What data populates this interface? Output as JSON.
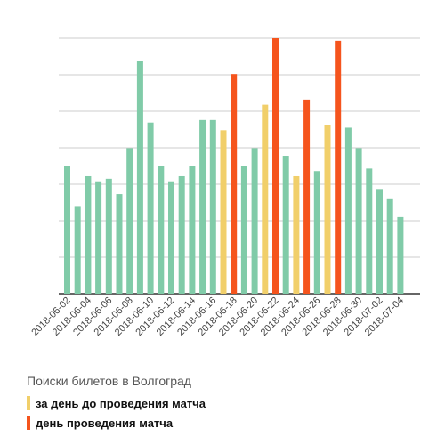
{
  "chart_data": {
    "type": "bar",
    "title": "",
    "xlabel": "",
    "ylabel": "",
    "ylim": [
      0,
      100
    ],
    "grid": true,
    "categories": [
      "2018-06-02",
      "2018-06-03",
      "2018-06-04",
      "2018-06-05",
      "2018-06-06",
      "2018-06-07",
      "2018-06-08",
      "2018-06-09",
      "2018-06-10",
      "2018-06-11",
      "2018-06-12",
      "2018-06-13",
      "2018-06-14",
      "2018-06-15",
      "2018-06-16",
      "2018-06-17",
      "2018-06-18",
      "2018-06-19",
      "2018-06-20",
      "2018-06-21",
      "2018-06-22",
      "2018-06-23",
      "2018-06-24",
      "2018-06-25",
      "2018-06-26",
      "2018-06-27",
      "2018-06-28",
      "2018-06-29",
      "2018-06-30",
      "2018-07-01",
      "2018-07-02",
      "2018-07-03",
      "2018-07-04"
    ],
    "tick_labels": [
      "2018-06-02",
      "2018-06-04",
      "2018-06-06",
      "2018-06-08",
      "2018-06-10",
      "2018-06-12",
      "2018-06-14",
      "2018-06-16",
      "2018-06-18",
      "2018-06-20",
      "2018-06-22",
      "2018-06-24",
      "2018-06-26",
      "2018-06-28",
      "2018-06-30",
      "2018-07-02",
      "2018-07-04"
    ],
    "values": [
      50,
      34,
      46,
      44,
      45,
      39,
      57,
      91,
      67,
      50,
      44,
      46,
      50,
      68,
      68,
      64,
      86,
      50,
      57,
      74,
      100,
      54,
      46,
      76,
      48,
      66,
      99,
      65,
      57,
      49,
      41,
      37,
      30
    ],
    "category_types": [
      "regular",
      "regular",
      "regular",
      "regular",
      "regular",
      "regular",
      "regular",
      "regular",
      "regular",
      "regular",
      "regular",
      "regular",
      "regular",
      "regular",
      "regular",
      "day_before",
      "match_day",
      "regular",
      "regular",
      "day_before",
      "match_day",
      "regular",
      "day_before",
      "match_day",
      "regular",
      "day_before",
      "match_day",
      "regular",
      "regular",
      "regular",
      "regular",
      "regular",
      "regular"
    ],
    "colors": {
      "regular": "#80cba8",
      "day_before": "#f1cf6a",
      "match_day": "#f5541d",
      "grid": "#cccccc",
      "axis": "#333333"
    },
    "legend": {
      "title": "Поиски билетов в Волгоград",
      "placement": "bottom-left",
      "items": [
        {
          "label": "за день до проведения матча",
          "color": "#f1cf6a"
        },
        {
          "label": "день проведения матча",
          "color": "#f5541d"
        }
      ]
    }
  }
}
